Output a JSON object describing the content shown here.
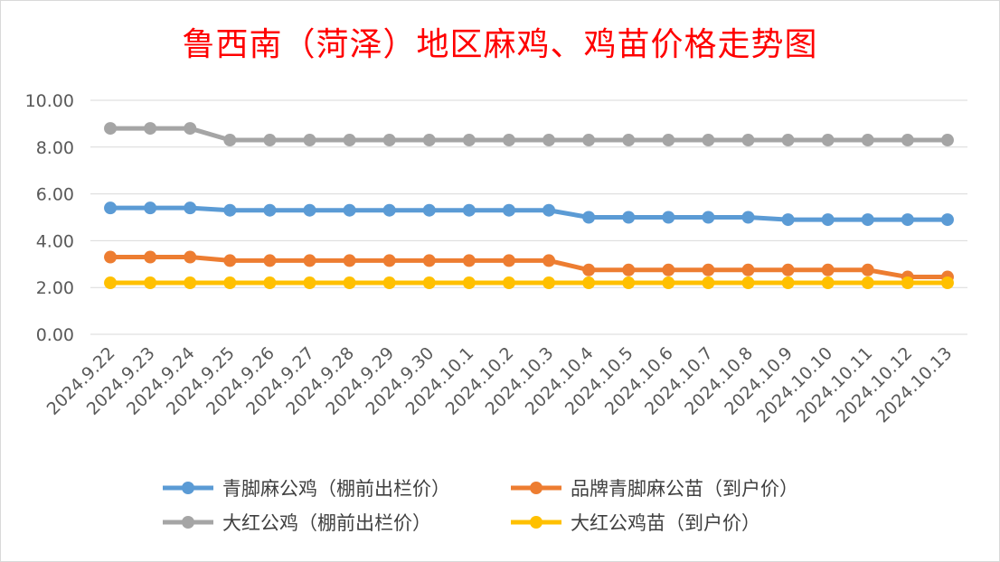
{
  "chart_data": {
    "type": "line",
    "title": "鲁西南（菏泽）地区麻鸡、鸡苗价格走势图",
    "categories": [
      "2024.9.22",
      "2024.9.23",
      "2024.9.24",
      "2024.9.25",
      "2024.9.26",
      "2024.9.27",
      "2024.9.28",
      "2024.9.29",
      "2024.9.30",
      "2024.10.1",
      "2024.10.2",
      "2024.10.3",
      "2024.10.4",
      "2024.10.5",
      "2024.10.6",
      "2024.10.7",
      "2024.10.8",
      "2024.10.9",
      "2024.10.10",
      "2024.10.11",
      "2024.10.12",
      "2024.10.13"
    ],
    "y_ticks": [
      "0.00",
      "2.00",
      "4.00",
      "6.00",
      "8.00",
      "10.00"
    ],
    "ylim": [
      0,
      10
    ],
    "grid": true,
    "legend_position": "bottom",
    "series": [
      {
        "name": "青脚麻公鸡（棚前出栏价）",
        "color": "#5b9bd5",
        "values": [
          5.4,
          5.4,
          5.4,
          5.3,
          5.3,
          5.3,
          5.3,
          5.3,
          5.3,
          5.3,
          5.3,
          5.3,
          5.0,
          5.0,
          5.0,
          5.0,
          5.0,
          4.9,
          4.9,
          4.9,
          4.9,
          4.9
        ]
      },
      {
        "name": "品牌青脚麻公苗（到户价）",
        "color": "#ed7d31",
        "values": [
          3.3,
          3.3,
          3.3,
          3.15,
          3.15,
          3.15,
          3.15,
          3.15,
          3.15,
          3.15,
          3.15,
          3.15,
          2.75,
          2.75,
          2.75,
          2.75,
          2.75,
          2.75,
          2.75,
          2.75,
          2.45,
          2.45
        ]
      },
      {
        "name": "大红公鸡（棚前出栏价）",
        "color": "#a5a5a5",
        "values": [
          8.8,
          8.8,
          8.8,
          8.3,
          8.3,
          8.3,
          8.3,
          8.3,
          8.3,
          8.3,
          8.3,
          8.3,
          8.3,
          8.3,
          8.3,
          8.3,
          8.3,
          8.3,
          8.3,
          8.3,
          8.3,
          8.3
        ]
      },
      {
        "name": "大红公鸡苗（到户价）",
        "color": "#ffc000",
        "values": [
          2.2,
          2.2,
          2.2,
          2.2,
          2.2,
          2.2,
          2.2,
          2.2,
          2.2,
          2.2,
          2.2,
          2.2,
          2.2,
          2.2,
          2.2,
          2.2,
          2.2,
          2.2,
          2.2,
          2.2,
          2.2,
          2.2
        ]
      }
    ]
  }
}
